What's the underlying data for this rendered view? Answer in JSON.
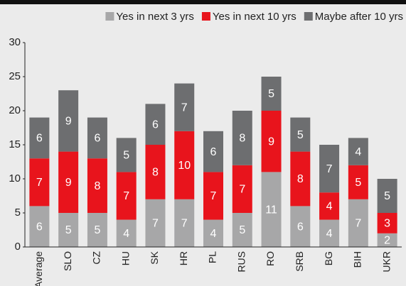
{
  "chart_data": {
    "type": "stacked_bar",
    "categories": [
      "Average",
      "SLO",
      "CZ",
      "HU",
      "SK",
      "HR",
      "PL",
      "RUS",
      "RO",
      "SRB",
      "BG",
      "BIH",
      "UKR"
    ],
    "series": [
      {
        "name": "Yes in next 3 yrs",
        "color": "#a7a7a8",
        "values": [
          6,
          5,
          5,
          4,
          7,
          7,
          4,
          5,
          11,
          6,
          4,
          7,
          2
        ]
      },
      {
        "name": "Yes in next 10 yrs",
        "color": "#e8141c",
        "values": [
          7,
          9,
          8,
          7,
          8,
          10,
          7,
          7,
          9,
          8,
          4,
          5,
          3
        ]
      },
      {
        "name": "Maybe after 10 yrs",
        "color": "#6d6e70",
        "values": [
          6,
          9,
          6,
          5,
          6,
          7,
          6,
          8,
          5,
          5,
          7,
          4,
          5
        ]
      }
    ],
    "ylim": [
      0,
      30
    ],
    "yticks": [
      0,
      5,
      10,
      15,
      20,
      25,
      30
    ],
    "legend": "top-right"
  }
}
